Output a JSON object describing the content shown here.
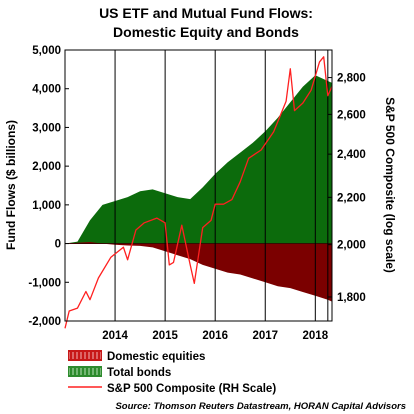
{
  "chart_data": {
    "type": "area",
    "title_line1": "US ETF and Mutual Fund Flows:",
    "title_line2": "Domestic Equity and Bonds",
    "ylabel_left": "Fund Flows ($ billions)",
    "ylabel_right": "S&P 500 Composite (log scale)",
    "ylim_left": [
      -2000,
      5000
    ],
    "yticks_left": [
      "5,000",
      "4,000",
      "3,000",
      "2,000",
      "1,000",
      "0",
      "-1,000",
      "-2,000"
    ],
    "ylim_right_log": [
      1715,
      2960
    ],
    "yticks_right": [
      "2,800",
      "2,600",
      "2,400",
      "2,200",
      "2,000",
      "1,800"
    ],
    "x_categories": [
      "2014",
      "2015",
      "2016",
      "2017",
      "2018"
    ],
    "x_range": [
      "2013-07",
      "2018-11"
    ],
    "vertical_lines": [
      "2014-07",
      "2015-07",
      "2016-07",
      "2017-07",
      "2018-07",
      "2018-10"
    ],
    "grid": false,
    "legend_position": "bottom-left",
    "series": [
      {
        "name": "Total bonds",
        "color": "#0c6b0c",
        "kind": "area",
        "axis": "left",
        "x": [
          "2013-07",
          "2013-10",
          "2014-01",
          "2014-04",
          "2014-07",
          "2014-10",
          "2015-01",
          "2015-04",
          "2015-07",
          "2015-10",
          "2016-01",
          "2016-04",
          "2016-07",
          "2016-10",
          "2017-01",
          "2017-04",
          "2017-07",
          "2017-10",
          "2018-01",
          "2018-04",
          "2018-07",
          "2018-10",
          "2018-11"
        ],
        "values": [
          0,
          50,
          600,
          1000,
          1100,
          1200,
          1350,
          1400,
          1300,
          1200,
          1150,
          1450,
          1800,
          2100,
          2350,
          2600,
          2900,
          3250,
          3650,
          4050,
          4350,
          4200,
          4150
        ]
      },
      {
        "name": "Domestic equities",
        "color": "#7b0000",
        "kind": "area",
        "axis": "left",
        "x": [
          "2013-07",
          "2013-10",
          "2014-01",
          "2014-04",
          "2014-07",
          "2014-10",
          "2015-01",
          "2015-04",
          "2015-07",
          "2015-10",
          "2016-01",
          "2016-04",
          "2016-07",
          "2016-10",
          "2017-01",
          "2017-04",
          "2017-07",
          "2017-10",
          "2018-01",
          "2018-04",
          "2018-07",
          "2018-10",
          "2018-11"
        ],
        "values": [
          0,
          20,
          40,
          0,
          -30,
          -50,
          -60,
          -100,
          -200,
          -300,
          -400,
          -550,
          -650,
          -750,
          -800,
          -900,
          -1000,
          -1100,
          -1150,
          -1250,
          -1350,
          -1450,
          -1500
        ]
      },
      {
        "name": "S&P 500 Composite (RH Scale)",
        "color": "#ff2020",
        "kind": "line",
        "axis": "right",
        "x": [
          "2013-07",
          "2013-08",
          "2013-10",
          "2013-12",
          "2014-01",
          "2014-03",
          "2014-06",
          "2014-09",
          "2014-10",
          "2014-12",
          "2015-02",
          "2015-05",
          "2015-07",
          "2015-08",
          "2015-09",
          "2015-11",
          "2016-01",
          "2016-02",
          "2016-04",
          "2016-06",
          "2016-07",
          "2016-09",
          "2016-11",
          "2017-01",
          "2017-03",
          "2017-06",
          "2017-09",
          "2017-12",
          "2018-01",
          "2018-02",
          "2018-04",
          "2018-06",
          "2018-08",
          "2018-09",
          "2018-10",
          "2018-11"
        ],
        "values": [
          1690,
          1750,
          1760,
          1820,
          1790,
          1870,
          1950,
          1990,
          1940,
          2060,
          2090,
          2110,
          2090,
          1920,
          1930,
          2080,
          1920,
          1850,
          2070,
          2100,
          2170,
          2170,
          2190,
          2270,
          2380,
          2420,
          2510,
          2670,
          2850,
          2620,
          2660,
          2730,
          2890,
          2920,
          2700,
          2750
        ]
      }
    ]
  },
  "legend": {
    "domestic_equities": "Domestic equities",
    "total_bonds": "Total bonds",
    "sp500": "S&P 500 Composite (RH Scale)"
  },
  "source_text": "Source: Thomson Reuters Datastream, HORAN Capital Advisors"
}
